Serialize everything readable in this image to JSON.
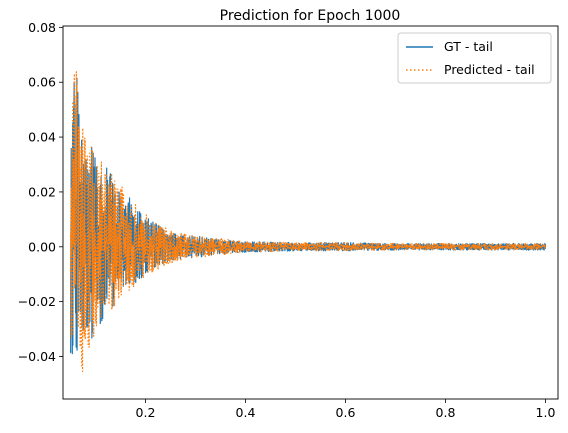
{
  "chart_data": {
    "type": "line",
    "title": "Prediction for Epoch 1000",
    "xlabel": "",
    "ylabel": "",
    "xlim": [
      0.035,
      1.025
    ],
    "ylim": [
      -0.0555,
      0.0805
    ],
    "x_ticks": [
      0.2,
      0.4,
      0.6,
      0.8,
      1.0
    ],
    "x_tick_labels": [
      "0.2",
      "0.4",
      "0.6",
      "0.8",
      "1.0"
    ],
    "y_ticks": [
      -0.04,
      -0.02,
      0.0,
      0.02,
      0.04,
      0.06,
      0.08
    ],
    "y_tick_labels": [
      "−0.04",
      "−0.02",
      "0.00",
      "0.02",
      "0.04",
      "0.06",
      "0.08"
    ],
    "grid": false,
    "legend_position": "top-right",
    "series": [
      {
        "name": "GT - tail",
        "color": "#1f77b4",
        "style": "solid",
        "x_range": [
          0.05,
          1.0
        ],
        "envelope": {
          "x": [
            0.05,
            0.055,
            0.06,
            0.07,
            0.08,
            0.1,
            0.12,
            0.15,
            0.2,
            0.25,
            0.3,
            0.35,
            0.4,
            0.5,
            0.6,
            0.7,
            0.8,
            0.9,
            1.0
          ],
          "upper": [
            0.044,
            0.05,
            0.073,
            0.05,
            0.04,
            0.034,
            0.03,
            0.022,
            0.011,
            0.005,
            0.004,
            0.0025,
            0.002,
            0.0015,
            0.0015,
            0.0012,
            0.0012,
            0.0012,
            0.0012
          ],
          "lower": [
            -0.04,
            -0.045,
            -0.036,
            -0.048,
            -0.04,
            -0.03,
            -0.026,
            -0.018,
            -0.01,
            -0.005,
            -0.004,
            -0.0025,
            -0.002,
            -0.0015,
            -0.0015,
            -0.0012,
            -0.0012,
            -0.0012,
            -0.0012
          ]
        }
      },
      {
        "name": "Predicted - tail",
        "color": "#ff7f0e",
        "style": "dotted",
        "x_range": [
          0.05,
          1.0
        ],
        "envelope": {
          "x": [
            0.05,
            0.055,
            0.06,
            0.07,
            0.08,
            0.1,
            0.12,
            0.15,
            0.2,
            0.25,
            0.3,
            0.35,
            0.4,
            0.5,
            0.6,
            0.7,
            0.8,
            0.9,
            1.0
          ],
          "upper": [
            0.045,
            0.056,
            0.074,
            0.05,
            0.041,
            0.035,
            0.031,
            0.023,
            0.012,
            0.006,
            0.004,
            0.003,
            0.002,
            0.0015,
            0.0015,
            0.0012,
            0.0012,
            0.0012,
            0.0012
          ],
          "lower": [
            -0.041,
            -0.046,
            -0.037,
            -0.049,
            -0.041,
            -0.031,
            -0.027,
            -0.019,
            -0.011,
            -0.006,
            -0.004,
            -0.003,
            -0.002,
            -0.0015,
            -0.0015,
            -0.0012,
            -0.0012,
            -0.0012,
            -0.0012
          ]
        }
      }
    ]
  }
}
